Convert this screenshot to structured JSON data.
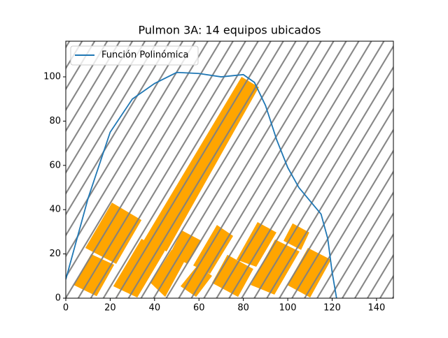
{
  "chart_data": {
    "type": "line",
    "title": "Pulmon 3A: 14 equipos ubicados",
    "x": [
      0,
      10,
      20,
      30,
      40,
      50,
      60,
      70,
      80,
      85,
      90,
      95,
      100,
      105,
      110,
      115,
      118,
      120,
      122
    ],
    "series": [
      {
        "name": "Función Polinómica",
        "color": "#1f77b4",
        "values": [
          8.5,
          45,
          75,
          90,
          97,
          102,
          101.5,
          100,
          101,
          97.5,
          87,
          71.6,
          59,
          50,
          44,
          38,
          27,
          11.7,
          0
        ]
      }
    ],
    "equipment_color": "#ffa500",
    "equipment": [
      {
        "x": [
          3.5,
          11.4,
          21.8,
          13.9
        ],
        "y": [
          6,
          19.9,
          15.1,
          0.9
        ]
      },
      {
        "x": [
          8.8,
          20.8,
          34.1,
          22.7
        ],
        "y": [
          22.7,
          43.2,
          35.3,
          15.5
        ]
      },
      {
        "x": [
          21.4,
          34.1,
          44.5,
          32.2
        ],
        "y": [
          5.4,
          26.8,
          21.1,
          0.3
        ]
      },
      {
        "x": [
          35,
          79.2,
          87,
          45.4
        ],
        "y": [
          25.9,
          100,
          95.3,
          21.1
        ]
      },
      {
        "x": [
          38.2,
          47.6,
          54.2,
          44.8
        ],
        "y": [
          6.9,
          21.8,
          18,
          0.6
        ]
      },
      {
        "x": [
          46.7,
          52.3,
          61.2,
          54.9
        ],
        "y": [
          19.6,
          30.6,
          25.9,
          15.5
        ]
      },
      {
        "x": [
          51.7,
          59.3,
          65.9,
          58.7
        ],
        "y": [
          5.4,
          14.8,
          10.1,
          0.6
        ]
      },
      {
        "x": [
          57.4,
          68.1,
          75.4,
          65
        ],
        "y": [
          14.8,
          33.1,
          28.1,
          11
        ]
      },
      {
        "x": [
          65.9,
          72.8,
          84.5,
          77.6
        ],
        "y": [
          6.9,
          19.6,
          13.2,
          0.6
        ]
      },
      {
        "x": [
          76.9,
          86.4,
          94.9,
          85.8
        ],
        "y": [
          17.4,
          34.4,
          29.7,
          14.2
        ]
      },
      {
        "x": [
          83.3,
          94.3,
          105.3,
          94
        ],
        "y": [
          6,
          26.5,
          21.1,
          1.6
        ]
      },
      {
        "x": [
          98.1,
          102.2,
          109.7,
          106
        ],
        "y": [
          25.9,
          33.8,
          29.7,
          21.8
        ]
      },
      {
        "x": [
          99.7,
          109.1,
          119.5,
          110.1
        ],
        "y": [
          6,
          22.7,
          17.4,
          0.3
        ]
      },
      {
        "x": [
          36.6,
          42.3,
          48.6,
          43.5
        ],
        "y": [
          23.7,
          32.2,
          28.4,
          19.6
        ]
      }
    ],
    "xlim": [
      0,
      147.6
    ],
    "ylim": [
      0,
      116.1
    ],
    "xticks": [
      0,
      20,
      40,
      60,
      80,
      100,
      120,
      140
    ],
    "yticks": [
      0,
      20,
      40,
      60,
      80,
      100
    ],
    "legend": "upper left"
  }
}
